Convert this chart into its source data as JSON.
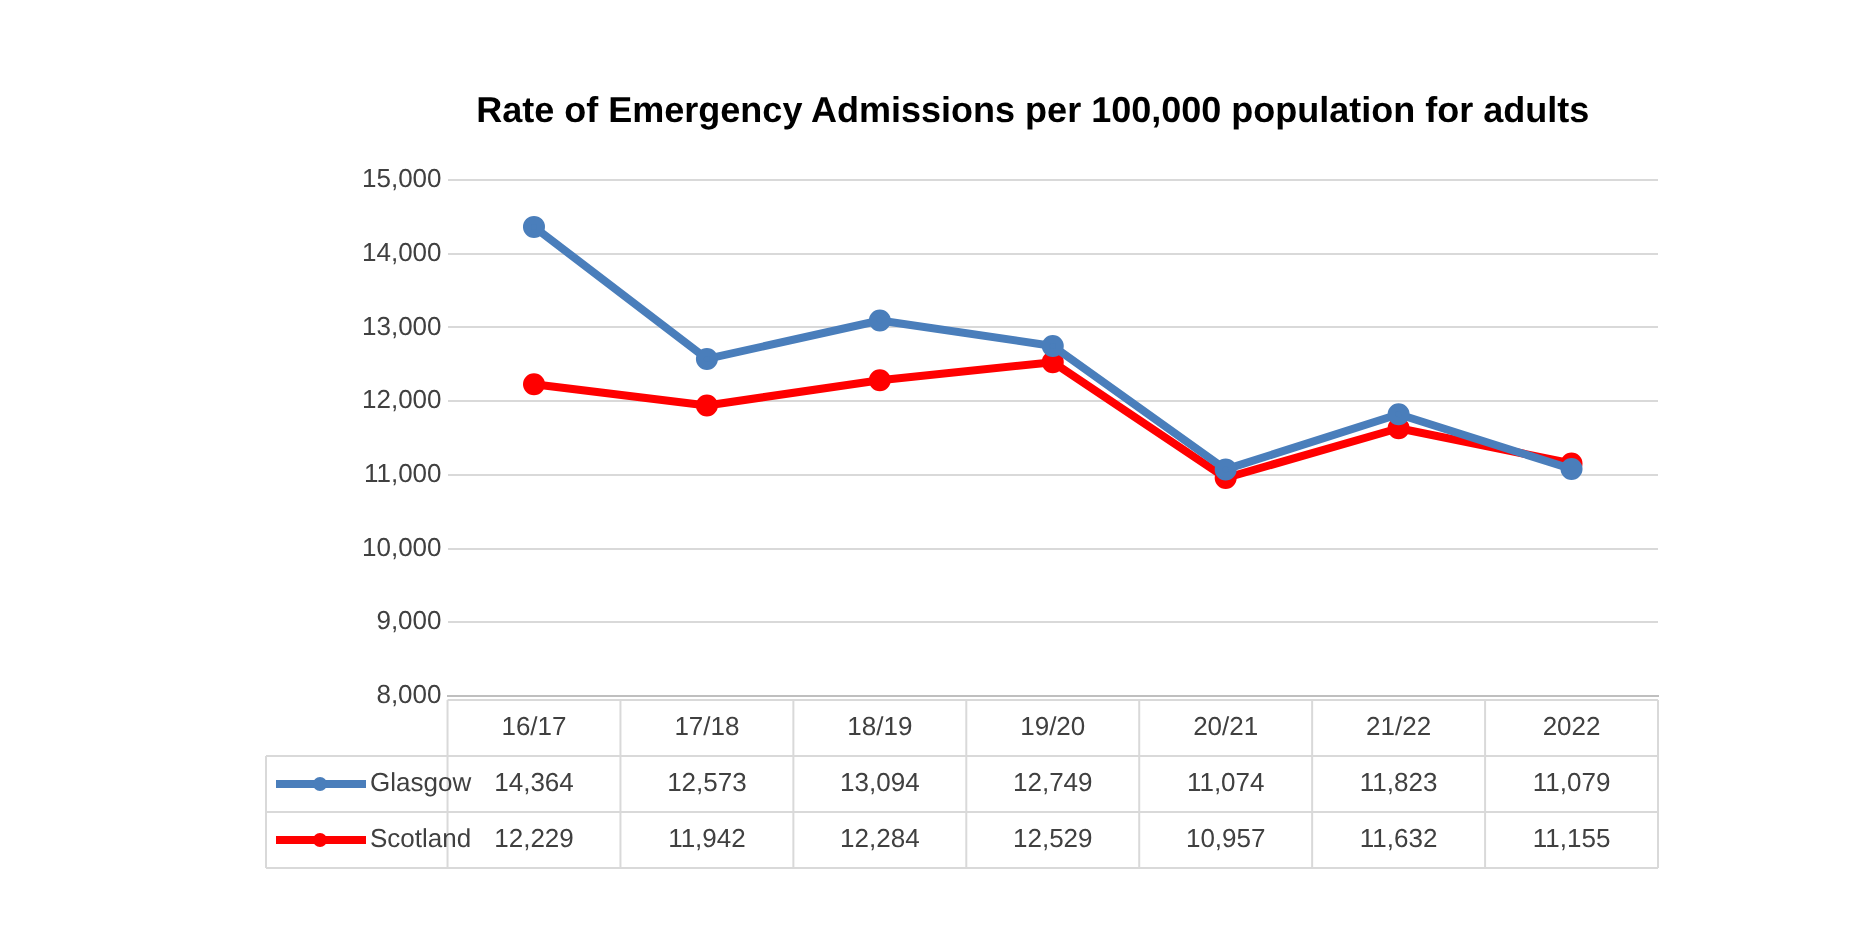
{
  "chart_data": {
    "type": "line",
    "title": "Rate of Emergency Admissions per 100,000 population for adults",
    "categories": [
      "16/17",
      "17/18",
      "18/19",
      "19/20",
      "20/21",
      "21/22",
      "2022"
    ],
    "series": [
      {
        "name": "Glasgow",
        "color": "#4a7ebb",
        "values": [
          14364,
          12573,
          13094,
          12749,
          11074,
          11823,
          11079
        ],
        "value_labels": [
          "14,364",
          "12,573",
          "13,094",
          "12,749",
          "11,074",
          "11,823",
          "11,079"
        ]
      },
      {
        "name": "Scotland",
        "color": "#ff0000",
        "values": [
          12229,
          11942,
          12284,
          12529,
          10957,
          11632,
          11155
        ],
        "value_labels": [
          "12,229",
          "11,942",
          "12,284",
          "12,529",
          "10,957",
          "11,632",
          "11,155"
        ]
      }
    ],
    "ylim": [
      8000,
      15000
    ],
    "yticks": [
      {
        "value": 8000,
        "label": "8,000"
      },
      {
        "value": 9000,
        "label": "9,000"
      },
      {
        "value": 10000,
        "label": "10,000"
      },
      {
        "value": 11000,
        "label": "11,000"
      },
      {
        "value": 12000,
        "label": "12,000"
      },
      {
        "value": 13000,
        "label": "13,000"
      },
      {
        "value": 14000,
        "label": "14,000"
      },
      {
        "value": 15000,
        "label": "15,000"
      }
    ],
    "grid": "y",
    "legend": "bottom",
    "marker": "circle",
    "line_style": "solid"
  }
}
